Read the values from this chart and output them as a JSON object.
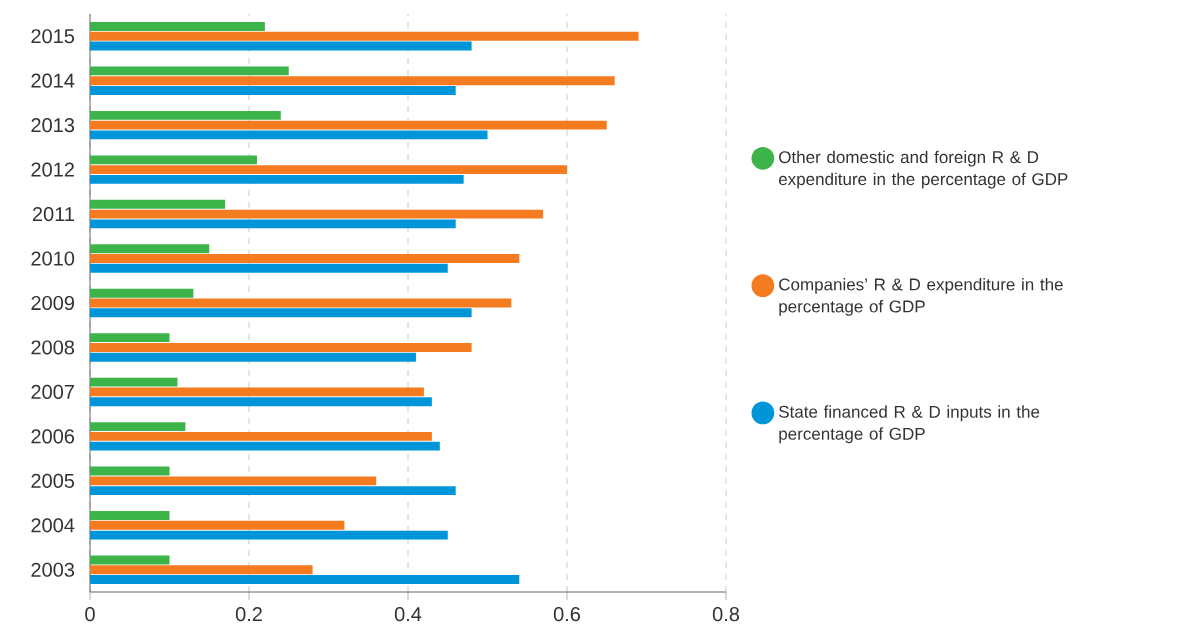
{
  "chart_data": {
    "type": "bar",
    "orientation": "horizontal",
    "categories": [
      "2015",
      "2014",
      "2013",
      "2012",
      "2011",
      "2010",
      "2009",
      "2008",
      "2007",
      "2006",
      "2005",
      "2004",
      "2003"
    ],
    "series": [
      {
        "name": "Other domestic and foreign R & D expenditure in the percentage of GDP",
        "color": "#3cb44a",
        "values": [
          0.22,
          0.25,
          0.24,
          0.21,
          0.17,
          0.15,
          0.13,
          0.1,
          0.11,
          0.12,
          0.1,
          0.1,
          0.1
        ]
      },
      {
        "name": "Companies’ R & D expenditure in the percentage of GDP",
        "color": "#f47b20",
        "values": [
          0.69,
          0.66,
          0.65,
          0.6,
          0.57,
          0.54,
          0.53,
          0.48,
          0.42,
          0.43,
          0.36,
          0.32,
          0.28
        ]
      },
      {
        "name": "State financed R & D inputs in the percentage of GDP",
        "color": "#0095d9",
        "values": [
          0.48,
          0.46,
          0.5,
          0.47,
          0.46,
          0.45,
          0.48,
          0.41,
          0.43,
          0.44,
          0.46,
          0.45,
          0.54
        ]
      }
    ],
    "xlim": [
      0,
      0.8
    ],
    "xticks": [
      0,
      0.2,
      0.4,
      0.6,
      0.8
    ],
    "grid": "x",
    "legend": "right"
  }
}
